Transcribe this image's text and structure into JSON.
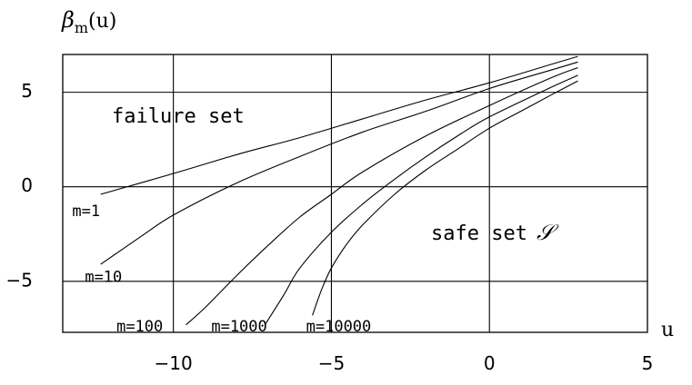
{
  "chart_data": {
    "type": "line",
    "title": "",
    "ylabel_symbol": "β",
    "ylabel_sub": "m",
    "ylabel_arg": "(u)",
    "xlabel": "u",
    "xlim": [
      -13.5,
      5
    ],
    "ylim": [
      -7.7,
      7
    ],
    "grid": true,
    "x_ticks": [
      -10,
      -5,
      0,
      5
    ],
    "x_tick_labels": [
      "−10",
      "−5",
      "0",
      "5"
    ],
    "y_ticks": [
      -5,
      0,
      5
    ],
    "y_tick_labels": [
      "−5",
      "0",
      "5"
    ],
    "region_labels": {
      "failure": "failure set",
      "safe": "safe set",
      "safe_symbol": "𝒮"
    },
    "series": [
      {
        "name": "m=1",
        "label_at": [
          -13.2,
          -1.3
        ],
        "x": [
          -12.3,
          -10,
          -8,
          -6,
          -4,
          -2,
          0,
          2,
          2.8
        ],
        "y": [
          -0.4,
          0.7,
          1.7,
          2.6,
          3.6,
          4.6,
          5.5,
          6.5,
          6.9
        ]
      },
      {
        "name": "m=10",
        "label_at": [
          -12.8,
          -4.8
        ],
        "x": [
          -12.3,
          -11,
          -10,
          -8,
          -6,
          -4,
          -2,
          0,
          2,
          2.8
        ],
        "y": [
          -4.1,
          -2.6,
          -1.5,
          0.2,
          1.6,
          2.9,
          4.0,
          5.2,
          6.2,
          6.6
        ]
      },
      {
        "name": "m=100",
        "label_at": [
          -11.8,
          -7.4
        ],
        "x": [
          -9.6,
          -9,
          -8,
          -7,
          -6,
          -5,
          -4,
          -2,
          0,
          2,
          2.8
        ],
        "y": [
          -7.3,
          -6.4,
          -4.7,
          -3.1,
          -1.6,
          -0.4,
          0.8,
          2.7,
          4.3,
          5.8,
          6.3
        ]
      },
      {
        "name": "m=1000",
        "label_at": [
          -8.8,
          -7.4
        ],
        "x": [
          -7.1,
          -6.5,
          -6,
          -5,
          -4,
          -3,
          -2,
          -1,
          0,
          2,
          2.8
        ],
        "y": [
          -7.3,
          -5.7,
          -4.3,
          -2.4,
          -0.9,
          0.4,
          1.6,
          2.7,
          3.7,
          5.3,
          5.9
        ]
      },
      {
        "name": "m=10000",
        "label_at": [
          -5.8,
          -7.4
        ],
        "x": [
          -5.6,
          -5.3,
          -5,
          -4.5,
          -4,
          -3,
          -2,
          -1,
          0,
          1,
          2,
          2.8
        ],
        "y": [
          -6.8,
          -5.4,
          -4.3,
          -3.0,
          -2.0,
          -0.4,
          0.9,
          2.0,
          3.1,
          4.0,
          4.9,
          5.6
        ]
      }
    ]
  }
}
